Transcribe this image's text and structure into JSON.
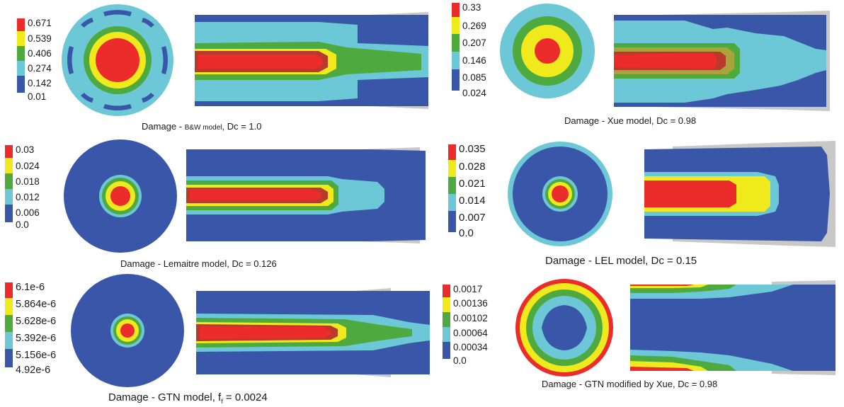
{
  "colors": {
    "red": "#ec2b2b",
    "yellow": "#f0ea1c",
    "green": "#4eaa3e",
    "cyan": "#6cc7d6",
    "blue": "#3a56a8",
    "darkred": "#b83a2c",
    "olive": "#a8a33a",
    "grey": "#c8c8c8"
  },
  "panels": [
    {
      "id": "bw",
      "legend": [
        "0.671",
        "0.539",
        "0.406",
        "0.274",
        "0.142",
        "0.01"
      ],
      "caption_prefix": "Damage - ",
      "caption_small": "B&W model",
      "caption_suffix": ", Dc = 1.0"
    },
    {
      "id": "xue",
      "legend": [
        "0.33",
        "0.269",
        "0.207",
        "0.146",
        "0.085",
        "0.024"
      ],
      "caption": "Damage - Xue model, Dc = 0.98"
    },
    {
      "id": "lemaitre",
      "legend": [
        "0.03",
        "0.024",
        "0.018",
        "0.012",
        "0.006",
        "0.0"
      ],
      "caption": "Damage - Lemaitre model, Dc = 0.126"
    },
    {
      "id": "lel",
      "legend": [
        "0.035",
        "0.028",
        "0.021",
        "0.014",
        "0.007",
        "0.0"
      ],
      "caption": "Damage - LEL model, Dc = 0.15"
    },
    {
      "id": "gtn",
      "legend": [
        "6.1e-6",
        "5.864e-6",
        "5.628e-6",
        "5.392e-6",
        "5.156e-6",
        "4.92e-6"
      ],
      "caption_prefix": "Damage - GTN model,  f",
      "caption_sub": "f",
      "caption_suffix": " = 0.0024"
    },
    {
      "id": "gtnxue",
      "legend": [
        "0.0017",
        "0.00136",
        "0.00102",
        "0.00064",
        "0.00034",
        "0.0"
      ],
      "caption": "Damage - GTN modified by Xue, Dc = 0.98"
    }
  ]
}
